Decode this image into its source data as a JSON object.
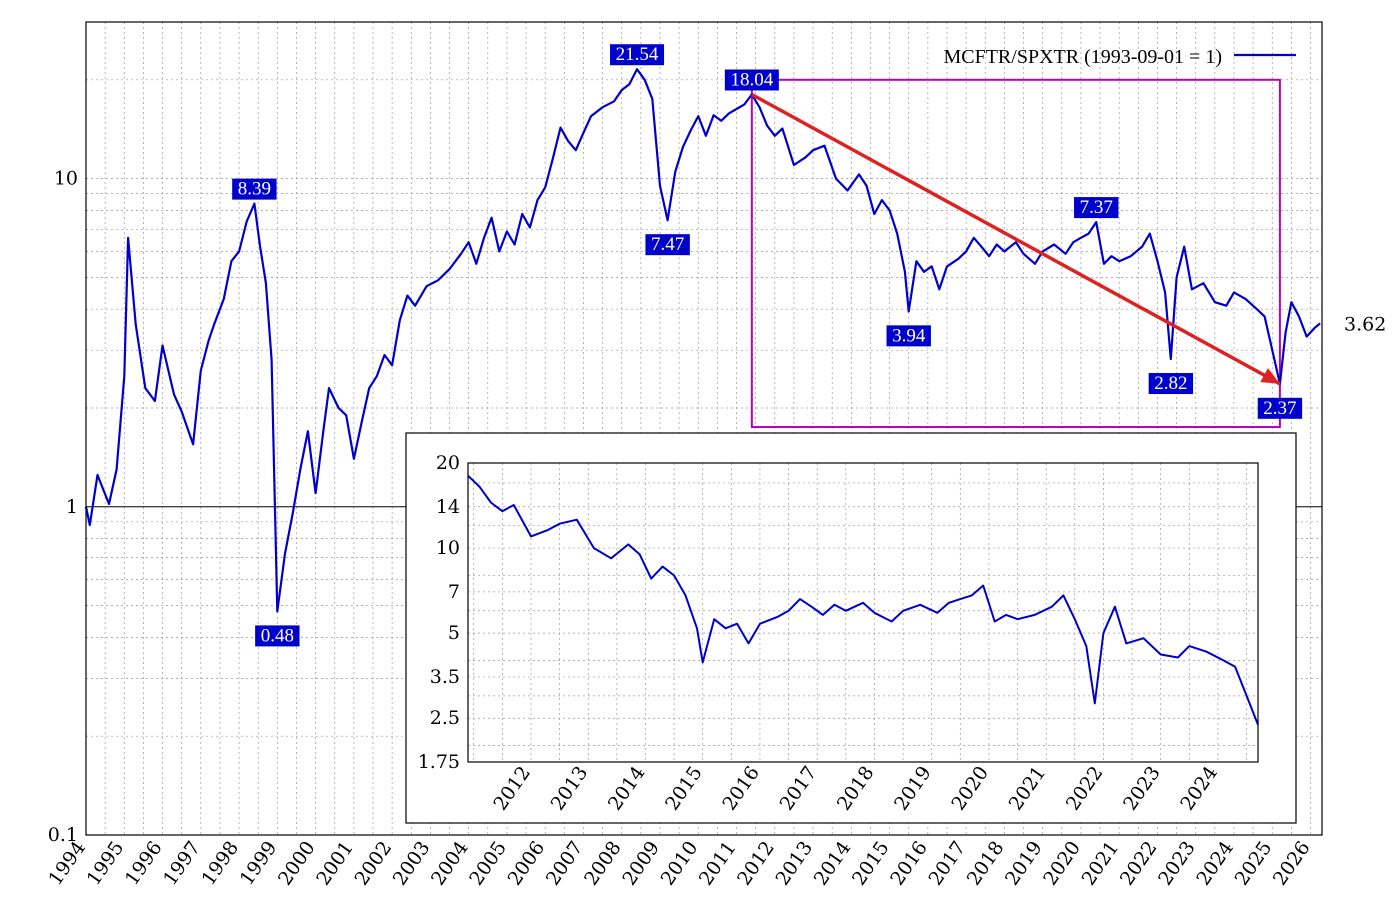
{
  "chart_data": [
    {
      "type": "line",
      "scale": "log",
      "series": [
        {
          "name": "MCFTR/SPXTR (1993-09-01 = 1)",
          "color": "#0000cc",
          "points": [
            [
              1994.0,
              1.0
            ],
            [
              1994.1,
              0.88
            ],
            [
              1994.3,
              1.25
            ],
            [
              1994.6,
              1.02
            ],
            [
              1994.8,
              1.3
            ],
            [
              1995.0,
              2.5
            ],
            [
              1995.1,
              6.6
            ],
            [
              1995.3,
              3.6
            ],
            [
              1995.55,
              2.3
            ],
            [
              1995.8,
              2.1
            ],
            [
              1996.0,
              3.1
            ],
            [
              1996.3,
              2.2
            ],
            [
              1996.5,
              1.95
            ],
            [
              1996.8,
              1.55
            ],
            [
              1997.0,
              2.6
            ],
            [
              1997.2,
              3.2
            ],
            [
              1997.35,
              3.6
            ],
            [
              1997.6,
              4.3
            ],
            [
              1997.8,
              5.6
            ],
            [
              1998.0,
              6.0
            ],
            [
              1998.2,
              7.4
            ],
            [
              1998.4,
              8.39
            ],
            [
              1998.55,
              6.2
            ],
            [
              1998.7,
              4.8
            ],
            [
              1998.85,
              2.8
            ],
            [
              1999.0,
              0.48
            ],
            [
              1999.2,
              0.72
            ],
            [
              1999.4,
              0.95
            ],
            [
              1999.6,
              1.3
            ],
            [
              1999.8,
              1.7
            ],
            [
              2000.0,
              1.1
            ],
            [
              2000.2,
              1.7
            ],
            [
              2000.35,
              2.3
            ],
            [
              2000.6,
              2.0
            ],
            [
              2000.8,
              1.9
            ],
            [
              2001.0,
              1.4
            ],
            [
              2001.2,
              1.8
            ],
            [
              2001.4,
              2.3
            ],
            [
              2001.6,
              2.5
            ],
            [
              2001.8,
              2.9
            ],
            [
              2002.0,
              2.7
            ],
            [
              2002.2,
              3.7
            ],
            [
              2002.4,
              4.4
            ],
            [
              2002.6,
              4.1
            ],
            [
              2002.9,
              4.7
            ],
            [
              2003.2,
              4.9
            ],
            [
              2003.5,
              5.3
            ],
            [
              2003.8,
              5.9
            ],
            [
              2004.0,
              6.4
            ],
            [
              2004.2,
              5.5
            ],
            [
              2004.4,
              6.6
            ],
            [
              2004.6,
              7.6
            ],
            [
              2004.8,
              6.0
            ],
            [
              2005.0,
              6.9
            ],
            [
              2005.2,
              6.3
            ],
            [
              2005.4,
              7.8
            ],
            [
              2005.6,
              7.1
            ],
            [
              2005.8,
              8.6
            ],
            [
              2006.0,
              9.4
            ],
            [
              2006.2,
              11.5
            ],
            [
              2006.4,
              14.3
            ],
            [
              2006.6,
              13.0
            ],
            [
              2006.8,
              12.2
            ],
            [
              2007.0,
              13.8
            ],
            [
              2007.2,
              15.5
            ],
            [
              2007.5,
              16.5
            ],
            [
              2007.8,
              17.2
            ],
            [
              2008.0,
              18.6
            ],
            [
              2008.2,
              19.4
            ],
            [
              2008.4,
              21.54
            ],
            [
              2008.6,
              20.0
            ],
            [
              2008.8,
              17.5
            ],
            [
              2009.0,
              9.5
            ],
            [
              2009.2,
              7.47
            ],
            [
              2009.4,
              10.5
            ],
            [
              2009.6,
              12.5
            ],
            [
              2009.8,
              14.0
            ],
            [
              2010.0,
              15.5
            ],
            [
              2010.2,
              13.5
            ],
            [
              2010.4,
              15.6
            ],
            [
              2010.6,
              15.0
            ],
            [
              2010.8,
              15.8
            ],
            [
              2011.0,
              16.3
            ],
            [
              2011.2,
              16.8
            ],
            [
              2011.4,
              18.04
            ],
            [
              2011.6,
              16.5
            ],
            [
              2011.8,
              14.5
            ],
            [
              2012.0,
              13.5
            ],
            [
              2012.2,
              14.2
            ],
            [
              2012.5,
              11.0
            ],
            [
              2012.8,
              11.6
            ],
            [
              2013.0,
              12.2
            ],
            [
              2013.3,
              12.6
            ],
            [
              2013.6,
              10.0
            ],
            [
              2013.9,
              9.2
            ],
            [
              2014.2,
              10.3
            ],
            [
              2014.4,
              9.5
            ],
            [
              2014.6,
              7.8
            ],
            [
              2014.8,
              8.6
            ],
            [
              2015.0,
              8.0
            ],
            [
              2015.2,
              6.8
            ],
            [
              2015.4,
              5.2
            ],
            [
              2015.5,
              3.94
            ],
            [
              2015.7,
              5.6
            ],
            [
              2015.9,
              5.2
            ],
            [
              2016.1,
              5.4
            ],
            [
              2016.3,
              4.6
            ],
            [
              2016.5,
              5.4
            ],
            [
              2016.8,
              5.7
            ],
            [
              2017.0,
              6.0
            ],
            [
              2017.2,
              6.6
            ],
            [
              2017.4,
              6.2
            ],
            [
              2017.6,
              5.8
            ],
            [
              2017.8,
              6.3
            ],
            [
              2018.0,
              6.0
            ],
            [
              2018.3,
              6.4
            ],
            [
              2018.5,
              5.9
            ],
            [
              2018.8,
              5.5
            ],
            [
              2019.0,
              6.0
            ],
            [
              2019.3,
              6.3
            ],
            [
              2019.6,
              5.9
            ],
            [
              2019.8,
              6.4
            ],
            [
              2020.0,
              6.6
            ],
            [
              2020.2,
              6.8
            ],
            [
              2020.4,
              7.37
            ],
            [
              2020.6,
              5.5
            ],
            [
              2020.8,
              5.8
            ],
            [
              2021.0,
              5.6
            ],
            [
              2021.3,
              5.8
            ],
            [
              2021.6,
              6.2
            ],
            [
              2021.8,
              6.8
            ],
            [
              2022.0,
              5.6
            ],
            [
              2022.2,
              4.5
            ],
            [
              2022.35,
              2.82
            ],
            [
              2022.5,
              5.0
            ],
            [
              2022.7,
              6.2
            ],
            [
              2022.9,
              4.6
            ],
            [
              2023.2,
              4.8
            ],
            [
              2023.5,
              4.2
            ],
            [
              2023.8,
              4.1
            ],
            [
              2024.0,
              4.5
            ],
            [
              2024.3,
              4.3
            ],
            [
              2024.6,
              4.0
            ],
            [
              2024.8,
              3.8
            ],
            [
              2025.0,
              3.0
            ],
            [
              2025.2,
              2.37
            ],
            [
              2025.35,
              3.4
            ],
            [
              2025.5,
              4.2
            ],
            [
              2025.7,
              3.8
            ],
            [
              2025.9,
              3.3
            ],
            [
              2026.1,
              3.5
            ],
            [
              2026.25,
              3.62
            ]
          ]
        }
      ],
      "ylim": [
        0.1,
        30
      ],
      "xlim": [
        1994.0,
        2026.3
      ],
      "y_ticks": [
        0.1,
        1,
        10
      ],
      "x_tick_labels": [
        "1994",
        "1995",
        "1996",
        "1997",
        "1998",
        "1999",
        "2000",
        "2001",
        "2002",
        "2003",
        "2004",
        "2005",
        "2006",
        "2007",
        "2008",
        "2009",
        "2010",
        "2011",
        "2012",
        "2013",
        "2014",
        "2015",
        "2016",
        "2017",
        "2018",
        "2019",
        "2020",
        "2021",
        "2022",
        "2023",
        "2024",
        "2025",
        "2026"
      ],
      "annotations": [
        {
          "label": "8.39",
          "x": 1998.4,
          "y": 8.39
        },
        {
          "label": "0.48",
          "x": 1999.0,
          "y": 0.48
        },
        {
          "label": "21.54",
          "x": 2008.4,
          "y": 21.54
        },
        {
          "label": "7.47",
          "x": 2009.2,
          "y": 7.47
        },
        {
          "label": "18.04",
          "x": 2011.4,
          "y": 18.04
        },
        {
          "label": "3.94",
          "x": 2015.5,
          "y": 3.94
        },
        {
          "label": "7.37",
          "x": 2020.4,
          "y": 7.37
        },
        {
          "label": "2.82",
          "x": 2022.35,
          "y": 2.82
        },
        {
          "label": "2.37",
          "x": 2025.2,
          "y": 2.37
        }
      ],
      "last_value_label": "3.62",
      "trend_arrow": {
        "from": [
          2011.4,
          18.04
        ],
        "to": [
          2025.2,
          2.37
        ],
        "color": "#dd2222"
      },
      "highlight_box": {
        "x": [
          2011.4,
          2025.2
        ],
        "y": [
          1.75,
          20
        ],
        "color": "#bb00bb"
      },
      "legend": {
        "placement": "top-right"
      },
      "grid": true
    },
    {
      "type": "line",
      "role": "inset",
      "scale": "log",
      "ylim": [
        1.75,
        20
      ],
      "xlim": [
        2011.4,
        2025.2
      ],
      "y_tick_labels": [
        "1.75",
        "2.5",
        "3.5",
        "5",
        "7",
        "10",
        "14",
        "20"
      ],
      "y_ticks": [
        1.75,
        2.5,
        3.5,
        5,
        7,
        10,
        14,
        20
      ],
      "x_tick_labels": [
        "2012",
        "2013",
        "2014",
        "2015",
        "2016",
        "2017",
        "2018",
        "2019",
        "2020",
        "2021",
        "2022",
        "2023",
        "2024"
      ],
      "grid": true
    }
  ]
}
